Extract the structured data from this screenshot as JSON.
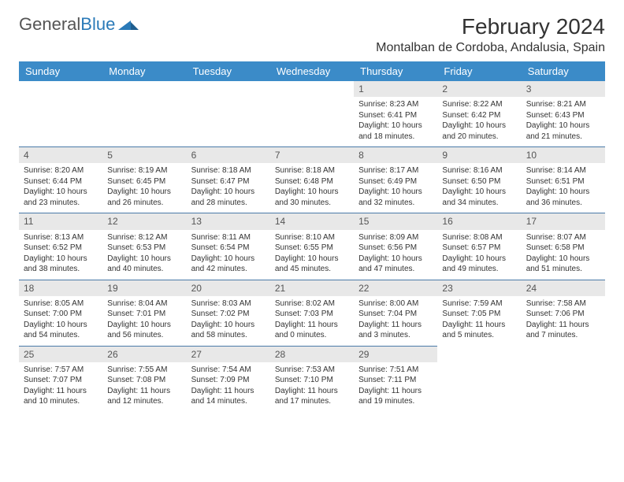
{
  "brand": {
    "part1": "General",
    "part2": "Blue"
  },
  "title": "February 2024",
  "location": "Montalban de Cordoba, Andalusia, Spain",
  "colors": {
    "header_bg": "#3b8bc8",
    "header_fg": "#ffffff",
    "daynum_bg": "#e8e8e8",
    "rule": "#4a7aa8",
    "brand_blue": "#2a7ab8",
    "text": "#333333"
  },
  "daysOfWeek": [
    "Sunday",
    "Monday",
    "Tuesday",
    "Wednesday",
    "Thursday",
    "Friday",
    "Saturday"
  ],
  "startOffset": 4,
  "cells": [
    {
      "n": 1,
      "sr": "8:23 AM",
      "ss": "6:41 PM",
      "dl": "10 hours and 18 minutes."
    },
    {
      "n": 2,
      "sr": "8:22 AM",
      "ss": "6:42 PM",
      "dl": "10 hours and 20 minutes."
    },
    {
      "n": 3,
      "sr": "8:21 AM",
      "ss": "6:43 PM",
      "dl": "10 hours and 21 minutes."
    },
    {
      "n": 4,
      "sr": "8:20 AM",
      "ss": "6:44 PM",
      "dl": "10 hours and 23 minutes."
    },
    {
      "n": 5,
      "sr": "8:19 AM",
      "ss": "6:45 PM",
      "dl": "10 hours and 26 minutes."
    },
    {
      "n": 6,
      "sr": "8:18 AM",
      "ss": "6:47 PM",
      "dl": "10 hours and 28 minutes."
    },
    {
      "n": 7,
      "sr": "8:18 AM",
      "ss": "6:48 PM",
      "dl": "10 hours and 30 minutes."
    },
    {
      "n": 8,
      "sr": "8:17 AM",
      "ss": "6:49 PM",
      "dl": "10 hours and 32 minutes."
    },
    {
      "n": 9,
      "sr": "8:16 AM",
      "ss": "6:50 PM",
      "dl": "10 hours and 34 minutes."
    },
    {
      "n": 10,
      "sr": "8:14 AM",
      "ss": "6:51 PM",
      "dl": "10 hours and 36 minutes."
    },
    {
      "n": 11,
      "sr": "8:13 AM",
      "ss": "6:52 PM",
      "dl": "10 hours and 38 minutes."
    },
    {
      "n": 12,
      "sr": "8:12 AM",
      "ss": "6:53 PM",
      "dl": "10 hours and 40 minutes."
    },
    {
      "n": 13,
      "sr": "8:11 AM",
      "ss": "6:54 PM",
      "dl": "10 hours and 42 minutes."
    },
    {
      "n": 14,
      "sr": "8:10 AM",
      "ss": "6:55 PM",
      "dl": "10 hours and 45 minutes."
    },
    {
      "n": 15,
      "sr": "8:09 AM",
      "ss": "6:56 PM",
      "dl": "10 hours and 47 minutes."
    },
    {
      "n": 16,
      "sr": "8:08 AM",
      "ss": "6:57 PM",
      "dl": "10 hours and 49 minutes."
    },
    {
      "n": 17,
      "sr": "8:07 AM",
      "ss": "6:58 PM",
      "dl": "10 hours and 51 minutes."
    },
    {
      "n": 18,
      "sr": "8:05 AM",
      "ss": "7:00 PM",
      "dl": "10 hours and 54 minutes."
    },
    {
      "n": 19,
      "sr": "8:04 AM",
      "ss": "7:01 PM",
      "dl": "10 hours and 56 minutes."
    },
    {
      "n": 20,
      "sr": "8:03 AM",
      "ss": "7:02 PM",
      "dl": "10 hours and 58 minutes."
    },
    {
      "n": 21,
      "sr": "8:02 AM",
      "ss": "7:03 PM",
      "dl": "11 hours and 0 minutes."
    },
    {
      "n": 22,
      "sr": "8:00 AM",
      "ss": "7:04 PM",
      "dl": "11 hours and 3 minutes."
    },
    {
      "n": 23,
      "sr": "7:59 AM",
      "ss": "7:05 PM",
      "dl": "11 hours and 5 minutes."
    },
    {
      "n": 24,
      "sr": "7:58 AM",
      "ss": "7:06 PM",
      "dl": "11 hours and 7 minutes."
    },
    {
      "n": 25,
      "sr": "7:57 AM",
      "ss": "7:07 PM",
      "dl": "11 hours and 10 minutes."
    },
    {
      "n": 26,
      "sr": "7:55 AM",
      "ss": "7:08 PM",
      "dl": "11 hours and 12 minutes."
    },
    {
      "n": 27,
      "sr": "7:54 AM",
      "ss": "7:09 PM",
      "dl": "11 hours and 14 minutes."
    },
    {
      "n": 28,
      "sr": "7:53 AM",
      "ss": "7:10 PM",
      "dl": "11 hours and 17 minutes."
    },
    {
      "n": 29,
      "sr": "7:51 AM",
      "ss": "7:11 PM",
      "dl": "11 hours and 19 minutes."
    }
  ],
  "labels": {
    "sunrise": "Sunrise:",
    "sunset": "Sunset:",
    "daylight": "Daylight:"
  }
}
